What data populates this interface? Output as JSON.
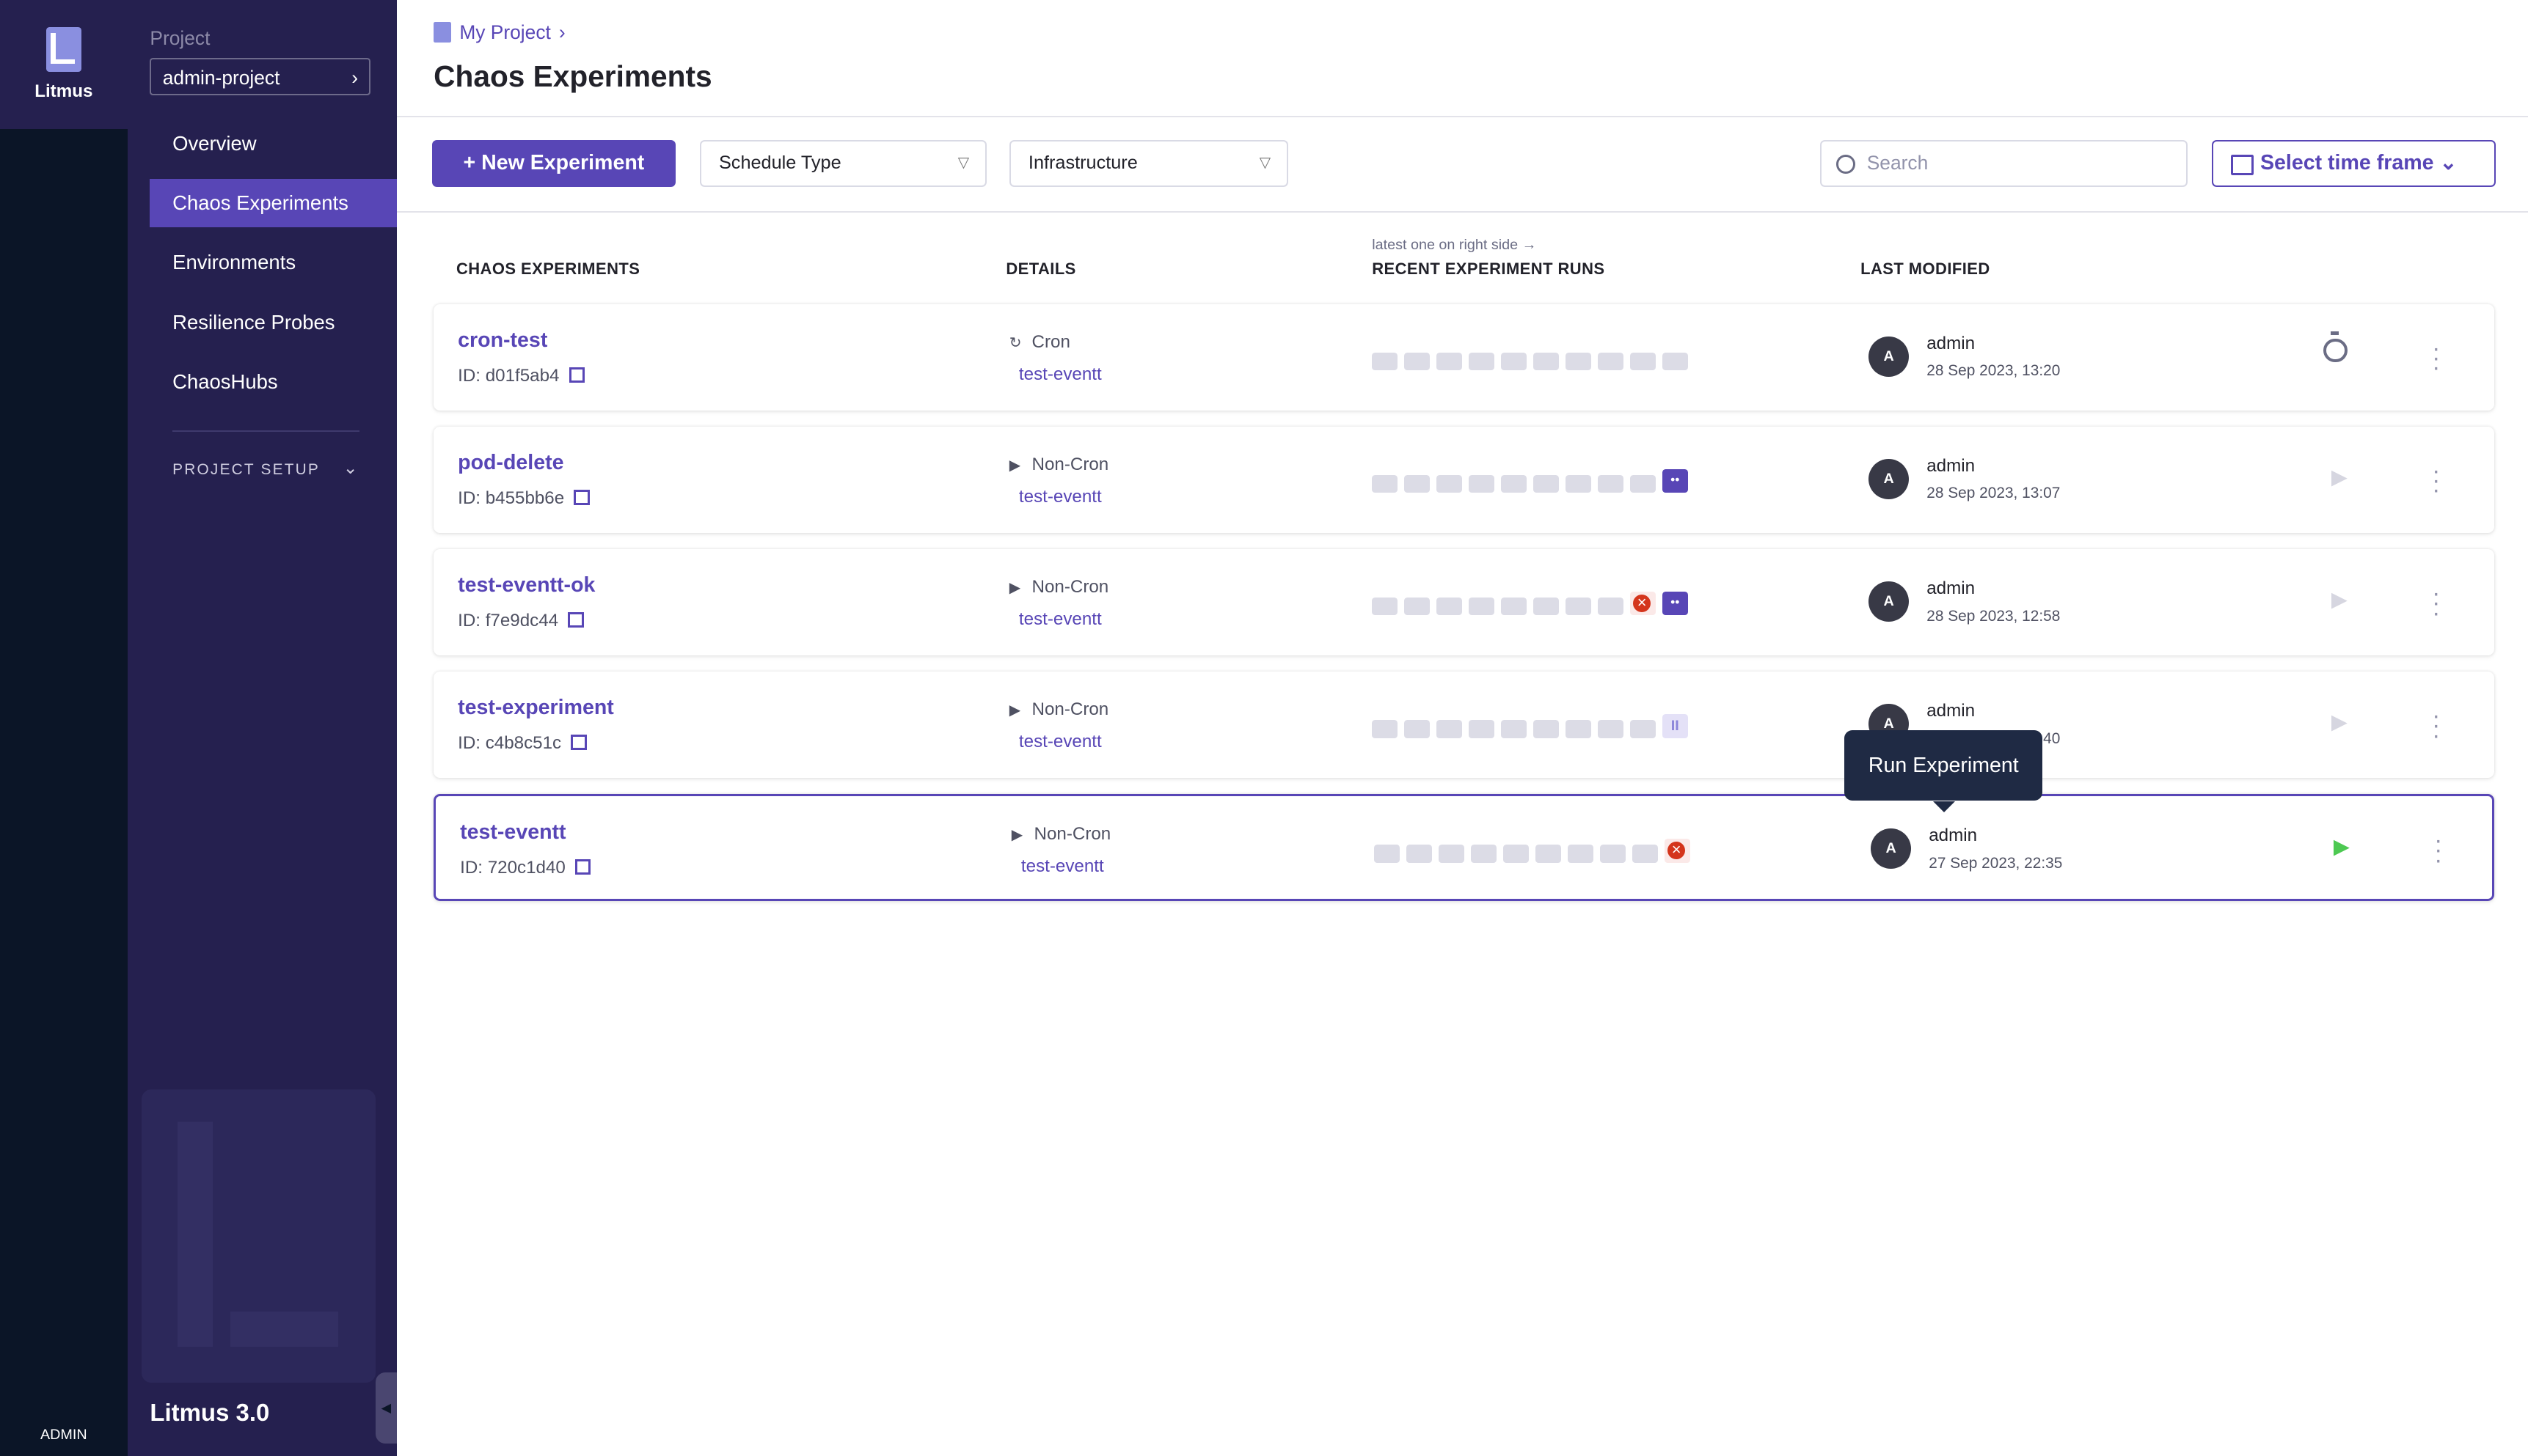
{
  "rail": {
    "app_name": "Litmus",
    "user_initial": "A",
    "user_label": "ADMIN"
  },
  "nav": {
    "project_label": "Project",
    "project_value": "admin-project",
    "items": [
      {
        "label": "Overview"
      },
      {
        "label": "Chaos Experiments",
        "active": true
      },
      {
        "label": "Environments"
      },
      {
        "label": "Resilience Probes"
      },
      {
        "label": "ChaosHubs"
      }
    ],
    "section": "PROJECT SETUP",
    "version": "Litmus 3.0"
  },
  "header": {
    "breadcrumb": "My Project",
    "title": "Chaos Experiments"
  },
  "toolbar": {
    "new_label": "New Experiment",
    "schedule_type": "Schedule Type",
    "infrastructure": "Infrastructure",
    "search_placeholder": "Search",
    "time_frame": "Select time frame"
  },
  "table": {
    "hint": "latest one on right side →",
    "columns": [
      "CHAOS EXPERIMENTS",
      "DETAILS",
      "RECENT EXPERIMENT RUNS",
      "LAST MODIFIED"
    ],
    "rows": [
      {
        "name": "cron-test",
        "id": "ID: d01f5ab4",
        "type": "Cron",
        "infra": "test-eventt",
        "runs": [
          "empty",
          "empty",
          "empty",
          "empty",
          "empty",
          "empty",
          "empty",
          "empty",
          "empty",
          "empty"
        ],
        "user": "admin",
        "date": "28 Sep 2023, 13:20",
        "action": "timer"
      },
      {
        "name": "pod-delete",
        "id": "ID: b455bb6e",
        "type": "Non-Cron",
        "infra": "test-eventt",
        "runs": [
          "empty",
          "empty",
          "empty",
          "empty",
          "empty",
          "empty",
          "empty",
          "empty",
          "empty",
          "running"
        ],
        "user": "admin",
        "date": "28 Sep 2023, 13:07",
        "action": "run-disabled"
      },
      {
        "name": "test-eventt-ok",
        "id": "ID: f7e9dc44",
        "type": "Non-Cron",
        "infra": "test-eventt",
        "runs": [
          "empty",
          "empty",
          "empty",
          "empty",
          "empty",
          "empty",
          "empty",
          "empty",
          "failed",
          "running"
        ],
        "user": "admin",
        "date": "28 Sep 2023, 12:58",
        "action": "run-disabled"
      },
      {
        "name": "test-experiment",
        "id": "ID: c4b8c51c",
        "type": "Non-Cron",
        "infra": "test-eventt",
        "runs": [
          "empty",
          "empty",
          "empty",
          "empty",
          "empty",
          "empty",
          "empty",
          "empty",
          "empty",
          "paused"
        ],
        "user": "admin",
        "date": "28 Sep 2023, 12:40",
        "action": "run-disabled"
      },
      {
        "name": "test-eventt",
        "id": "ID: 720c1d40",
        "type": "Non-Cron",
        "infra": "test-eventt",
        "runs": [
          "empty",
          "empty",
          "empty",
          "empty",
          "empty",
          "empty",
          "empty",
          "empty",
          "empty",
          "failed"
        ],
        "user": "admin",
        "date": "27 Sep 2023, 22:35",
        "action": "run",
        "selected": true
      }
    ]
  },
  "tooltip": "Run Experiment",
  "colors": {
    "brand": "#5846b6",
    "sidebar": "#25204f",
    "rail": "#0b1527",
    "success": "#4dc952",
    "error": "#d4351c"
  }
}
